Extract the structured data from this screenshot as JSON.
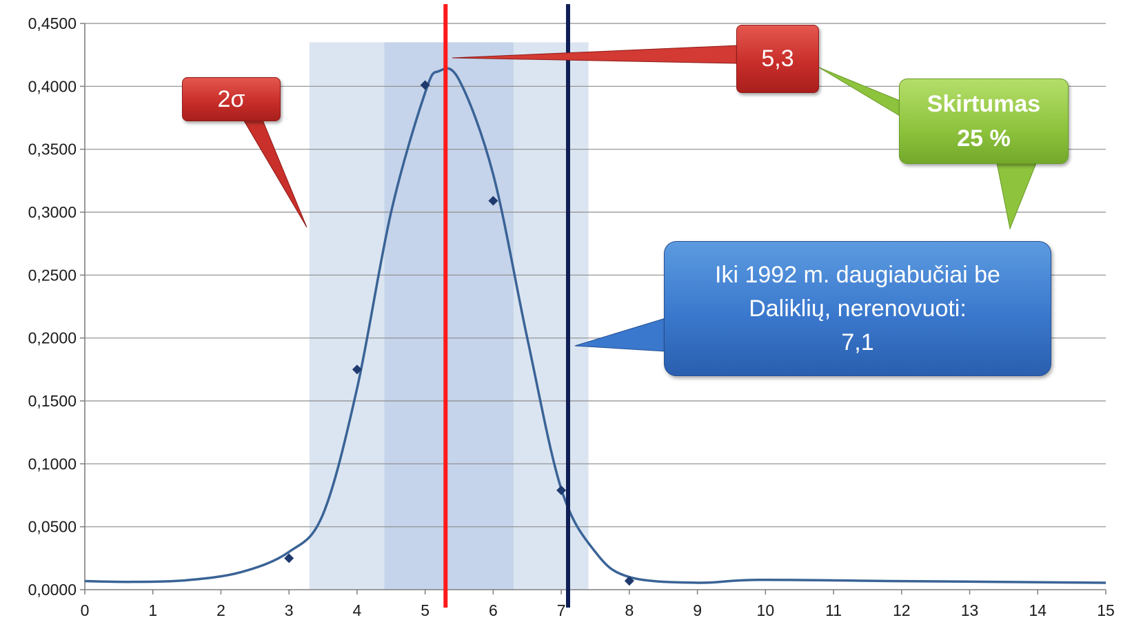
{
  "chart_data": {
    "type": "line",
    "x": [
      0,
      1,
      2,
      3,
      4,
      5,
      6,
      7,
      8,
      9,
      10,
      11,
      12,
      13,
      14,
      15
    ],
    "y_tick_labels": [
      "0,0000",
      "0,0500",
      "0,1000",
      "0,1500",
      "0,2000",
      "0,2500",
      "0,3000",
      "0,3500",
      "0,4000",
      "0,4500"
    ],
    "x_tick_labels": [
      "0",
      "1",
      "2",
      "3",
      "4",
      "5",
      "6",
      "7",
      "8",
      "9",
      "10",
      "11",
      "12",
      "13",
      "14",
      "15"
    ],
    "xlim": [
      0,
      15
    ],
    "ylim": [
      0,
      0.45
    ],
    "grid": true,
    "series": [
      {
        "type": "scatter",
        "marker": "diamond",
        "color": "#1f3a6e",
        "points": [
          [
            3,
            0.025
          ],
          [
            4,
            0.175
          ],
          [
            5,
            0.401
          ],
          [
            6,
            0.309
          ],
          [
            7,
            0.079
          ],
          [
            8,
            0.007
          ]
        ]
      },
      {
        "type": "smooth-line",
        "color": "#3a6396",
        "points": [
          [
            0,
            0.0068
          ],
          [
            0.7,
            0.0062
          ],
          [
            1.5,
            0.0075
          ],
          [
            2.3,
            0.014
          ],
          [
            3,
            0.03
          ],
          [
            3.5,
            0.06
          ],
          [
            4,
            0.16
          ],
          [
            4.5,
            0.3
          ],
          [
            5,
            0.395
          ],
          [
            5.2,
            0.412
          ],
          [
            5.5,
            0.405
          ],
          [
            6,
            0.33
          ],
          [
            6.5,
            0.2
          ],
          [
            7,
            0.08
          ],
          [
            7.5,
            0.03
          ],
          [
            8,
            0.01
          ],
          [
            9,
            0.0055
          ],
          [
            9.9,
            0.0078
          ],
          [
            12,
            0.0068
          ],
          [
            15,
            0.0055
          ]
        ]
      }
    ],
    "bands": [
      {
        "from": 3.3,
        "to": 7.4,
        "top": 0.435,
        "color": "#dbe5f1"
      },
      {
        "from": 4.4,
        "to": 6.3,
        "top": 0.435,
        "color": "#c5d4ea"
      }
    ],
    "vertical_lines": [
      {
        "x": 5.3,
        "color": "#ff1a1a"
      },
      {
        "x": 7.1,
        "color": "#0f1f55"
      }
    ],
    "annotations": [
      {
        "text": "2σ",
        "color": "red"
      },
      {
        "text": "5,3",
        "color": "red"
      },
      {
        "text": "Skirtumas",
        "text2": "25 %",
        "color": "green"
      },
      {
        "text": "Iki 1992 m. daugiabučiai be",
        "text2": "Daliklių, nerenovuoti:",
        "text3": "7,1",
        "color": "blue"
      }
    ]
  }
}
